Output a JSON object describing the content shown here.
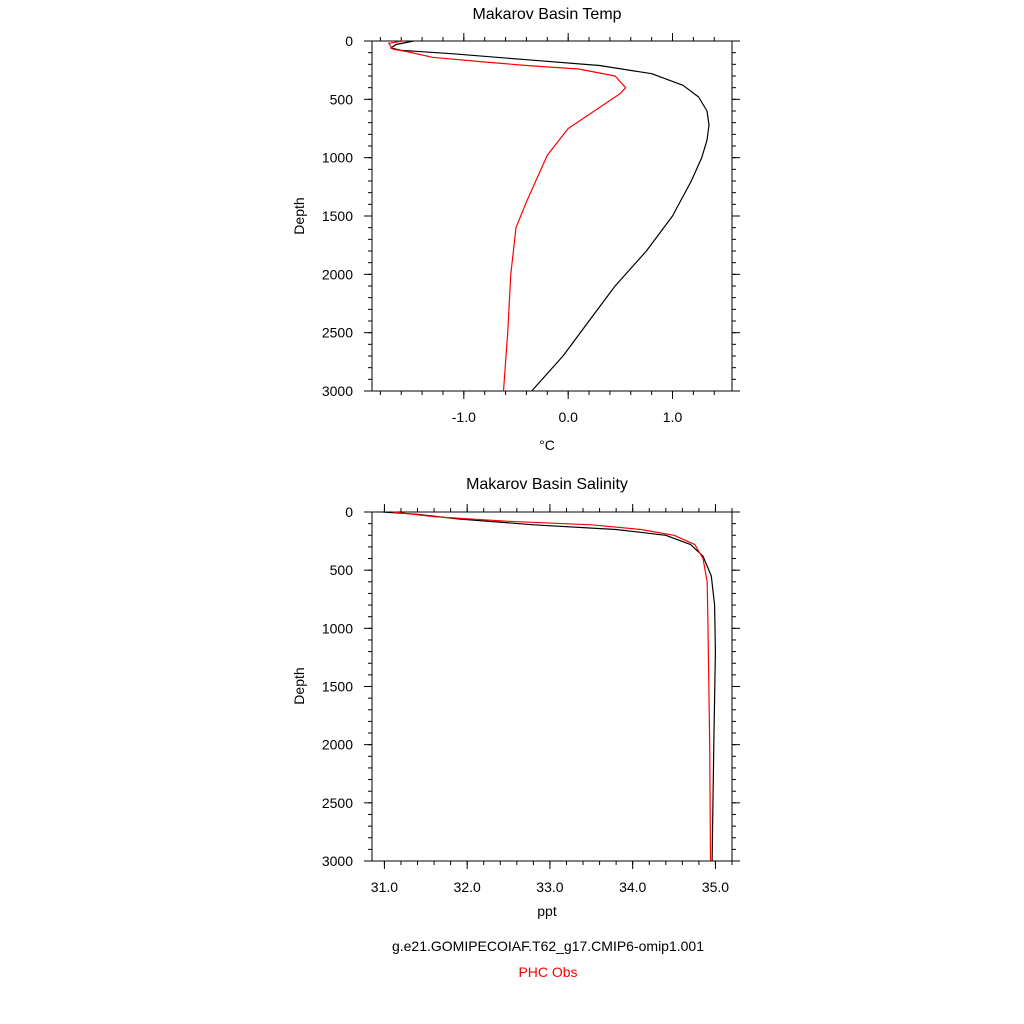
{
  "chart_data": [
    {
      "type": "line",
      "title": "Makarov Basin Temp",
      "xlabel": "°C",
      "ylabel": "Depth",
      "xlim": [
        -1.88,
        1.57
      ],
      "ylim": [
        3000,
        0
      ],
      "y_reversed": true,
      "xticks": [
        -1.0,
        0.0,
        1.0
      ],
      "xtick_labels": [
        "-1.0",
        "0.0",
        "1.0"
      ],
      "yticks": [
        0,
        500,
        1000,
        1500,
        2000,
        2500,
        3000
      ],
      "ytick_labels": [
        "0",
        "500",
        "1000",
        "1500",
        "2000",
        "2500",
        "3000"
      ],
      "series": [
        {
          "name": "g.e21.GOMIPECOIAF.T62_g17.CMIP6-omip1.001",
          "color": "#000000",
          "points": [
            [
              -1.48,
              0
            ],
            [
              -1.65,
              30
            ],
            [
              -1.7,
              60
            ],
            [
              -1.6,
              80
            ],
            [
              -1.1,
              110
            ],
            [
              -0.4,
              160
            ],
            [
              0.3,
              210
            ],
            [
              0.8,
              280
            ],
            [
              1.1,
              380
            ],
            [
              1.25,
              480
            ],
            [
              1.33,
              600
            ],
            [
              1.35,
              720
            ],
            [
              1.33,
              850
            ],
            [
              1.28,
              1000
            ],
            [
              1.18,
              1200
            ],
            [
              1.0,
              1500
            ],
            [
              0.75,
              1800
            ],
            [
              0.45,
              2100
            ],
            [
              0.2,
              2400
            ],
            [
              -0.05,
              2700
            ],
            [
              -0.35,
              3000
            ]
          ]
        },
        {
          "name": "PHC Obs",
          "color": "#ff0000",
          "points": [
            [
              -1.58,
              0
            ],
            [
              -1.72,
              20
            ],
            [
              -1.68,
              70
            ],
            [
              -1.55,
              90
            ],
            [
              -1.3,
              140
            ],
            [
              -0.8,
              180
            ],
            [
              -0.4,
              210
            ],
            [
              0.1,
              240
            ],
            [
              0.45,
              300
            ],
            [
              0.55,
              400
            ],
            [
              0.5,
              450
            ],
            [
              0.3,
              570
            ],
            [
              0.0,
              750
            ],
            [
              -0.2,
              980
            ],
            [
              -0.4,
              1380
            ],
            [
              -0.5,
              1600
            ],
            [
              -0.55,
              2000
            ],
            [
              -0.58,
              2500
            ],
            [
              -0.62,
              3000
            ]
          ]
        }
      ]
    },
    {
      "type": "line",
      "title": "Makarov Basin Salinity",
      "xlabel": "ppt",
      "ylabel": "Depth",
      "xlim": [
        30.85,
        35.2
      ],
      "ylim": [
        3000,
        0
      ],
      "y_reversed": true,
      "xticks": [
        31.0,
        32.0,
        33.0,
        34.0,
        35.0
      ],
      "xtick_labels": [
        "31.0",
        "32.0",
        "33.0",
        "34.0",
        "35.0"
      ],
      "yticks": [
        0,
        500,
        1000,
        1500,
        2000,
        2500,
        3000
      ],
      "ytick_labels": [
        "0",
        "500",
        "1000",
        "1500",
        "2000",
        "2500",
        "3000"
      ],
      "series": [
        {
          "name": "g.e21.GOMIPECOIAF.T62_g17.CMIP6-omip1.001",
          "color": "#000000",
          "points": [
            [
              30.98,
              0
            ],
            [
              31.4,
              20
            ],
            [
              31.9,
              60
            ],
            [
              32.8,
              110
            ],
            [
              33.8,
              150
            ],
            [
              34.4,
              200
            ],
            [
              34.7,
              280
            ],
            [
              34.85,
              380
            ],
            [
              34.95,
              550
            ],
            [
              34.99,
              800
            ],
            [
              35.0,
              1200
            ],
            [
              34.98,
              2000
            ],
            [
              34.96,
              3000
            ]
          ]
        },
        {
          "name": "PHC Obs",
          "color": "#ff0000",
          "points": [
            [
              31.1,
              0
            ],
            [
              31.6,
              40
            ],
            [
              32.5,
              80
            ],
            [
              33.5,
              110
            ],
            [
              34.1,
              150
            ],
            [
              34.5,
              200
            ],
            [
              34.75,
              280
            ],
            [
              34.85,
              400
            ],
            [
              34.9,
              600
            ],
            [
              34.91,
              1000
            ],
            [
              34.93,
              2000
            ],
            [
              34.94,
              3000
            ]
          ]
        }
      ]
    }
  ],
  "legend": {
    "model_label": "g.e21.GOMIPECOIAF.T62_g17.CMIP6-omip1.001",
    "obs_label": "PHC Obs"
  }
}
